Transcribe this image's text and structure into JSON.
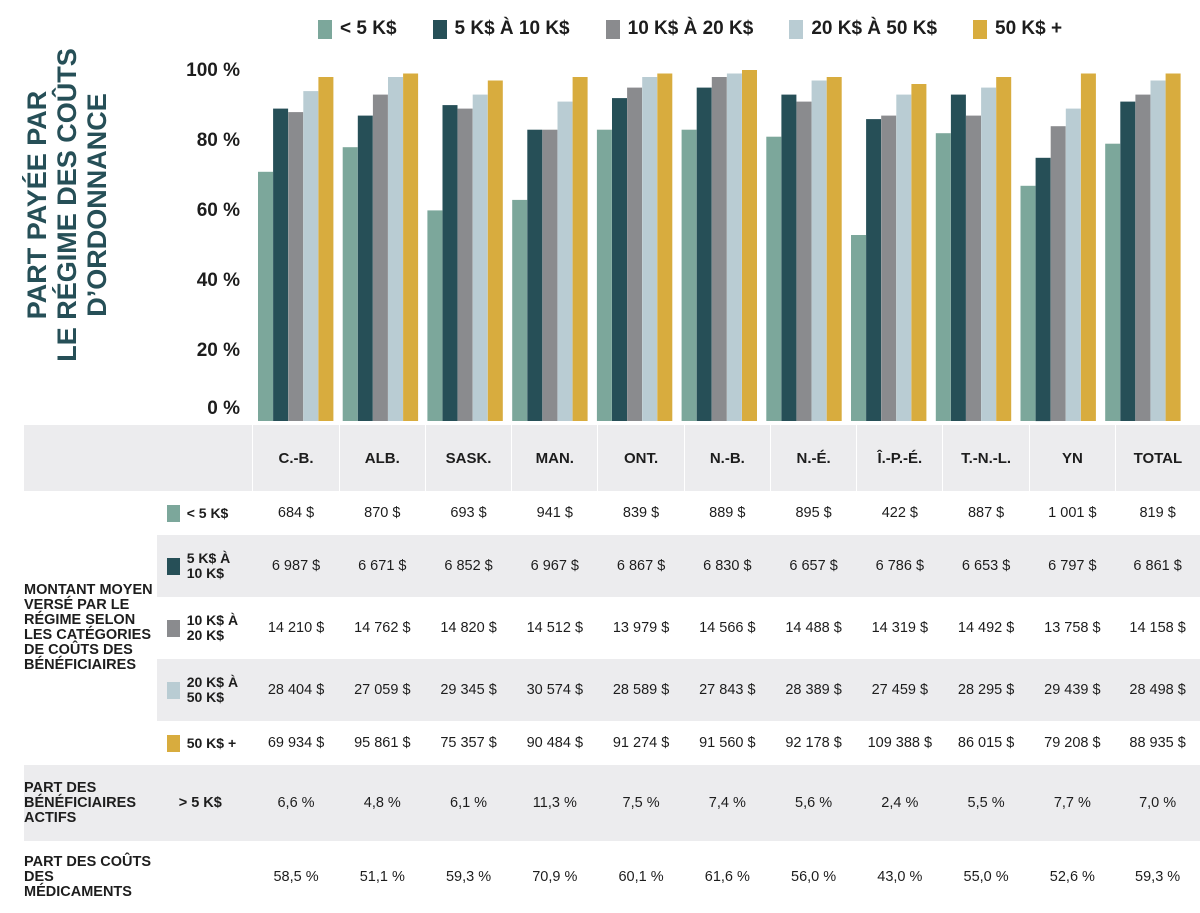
{
  "colors": [
    "#7ca79b",
    "#264f57",
    "#8a8b8e",
    "#b9ccd3",
    "#d8ac3e"
  ],
  "chart_data": {
    "type": "bar",
    "ylabel_lines": [
      "PART PAYÉE PAR",
      "LE RÉGIME DES COÛTS",
      "D’ORDONNANCE"
    ],
    "ylim": [
      0,
      100
    ],
    "yticks": [
      "100 %",
      "80 %",
      "60 %",
      "40 %",
      "20 %",
      "0 %"
    ],
    "categories": [
      "C.-B.",
      "ALB.",
      "SASK.",
      "MAN.",
      "ONT.",
      "N.-B.",
      "N.-É.",
      "Î.-P.-É.",
      "T.-N.-L.",
      "YN",
      "TOTAL"
    ],
    "series": [
      {
        "name": "< 5 K$",
        "values": [
          71,
          78,
          60,
          63,
          83,
          83,
          81,
          53,
          82,
          67,
          79
        ]
      },
      {
        "name": "5 K$ À 10 K$",
        "values": [
          89,
          87,
          90,
          83,
          92,
          95,
          93,
          86,
          93,
          75,
          91
        ]
      },
      {
        "name": "10 K$ À 20 K$",
        "values": [
          88,
          93,
          89,
          83,
          95,
          98,
          91,
          87,
          87,
          84,
          93
        ]
      },
      {
        "name": "20 K$ À 50 K$",
        "values": [
          94,
          98,
          93,
          91,
          98,
          99,
          97,
          93,
          95,
          89,
          97
        ]
      },
      {
        "name": "50 K$ +",
        "values": [
          98,
          99,
          97,
          98,
          99,
          100,
          98,
          96,
          98,
          99,
          99
        ]
      }
    ]
  },
  "table": {
    "section1_label": "MONTANT MOYEN VERSÉ PAR LE RÉGIME SELON LES CATÉGORIES DE COÛTS DES BÉNÉFICIAIRES",
    "rows": [
      {
        "label": "< 5 K$",
        "values": [
          "684 $",
          "870 $",
          "693 $",
          "941 $",
          "839 $",
          "889 $",
          "895 $",
          "422 $",
          "887 $",
          "1 001 $",
          "819 $"
        ]
      },
      {
        "label": "5 K$ À 10 K$",
        "values": [
          "6 987 $",
          "6 671 $",
          "6 852 $",
          "6 967 $",
          "6 867 $",
          "6 830 $",
          "6 657 $",
          "6 786 $",
          "6 653 $",
          "6 797 $",
          "6 861 $"
        ]
      },
      {
        "label": "10 K$ À 20 K$",
        "values": [
          "14 210 $",
          "14 762 $",
          "14 820 $",
          "14 512 $",
          "13 979 $",
          "14 566 $",
          "14 488 $",
          "14 319 $",
          "14 492 $",
          "13 758 $",
          "14 158 $"
        ]
      },
      {
        "label": "20 K$ À 50 K$",
        "values": [
          "28 404 $",
          "27 059 $",
          "29 345 $",
          "30 574 $",
          "28 589 $",
          "27 843 $",
          "28 389 $",
          "27 459 $",
          "28 295 $",
          "29 439 $",
          "28 498 $"
        ]
      },
      {
        "label": "50 K$ +",
        "values": [
          "69 934 $",
          "95 861 $",
          "75 357 $",
          "90 484 $",
          "91 274 $",
          "91 560 $",
          "92 178 $",
          "109 388 $",
          "86 015 $",
          "79 208 $",
          "88 935 $"
        ]
      }
    ],
    "active_label": "PART DES BÉNÉFICIAIRES ACTIFS",
    "active_threshold": "> 5 K$",
    "active_values": [
      "6,6 %",
      "4,8 %",
      "6,1 %",
      "11,3 %",
      "7,5 %",
      "7,4 %",
      "5,6 %",
      "2,4 %",
      "5,5 %",
      "7,7 %",
      "7,0 %"
    ],
    "cost_label": "PART DES COÛTS DES MÉDICAMENTS",
    "cost_values": [
      "58,5 %",
      "51,1 %",
      "59,3 %",
      "70,9 %",
      "60,1 %",
      "61,6 %",
      "56,0 %",
      "43,0 %",
      "55,0 %",
      "52,6 %",
      "59,3 %"
    ]
  }
}
